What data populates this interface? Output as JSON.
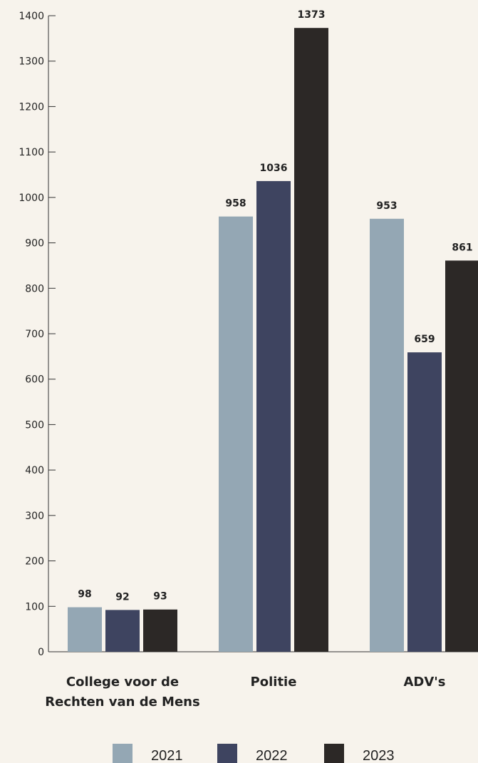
{
  "chart_data": {
    "type": "bar",
    "categories": [
      [
        "College voor de",
        "Rechten van de Mens"
      ],
      [
        "Politie"
      ],
      [
        "ADV's"
      ]
    ],
    "category_names": [
      "College voor de Rechten van de Mens",
      "Politie",
      "ADV's"
    ],
    "series": [
      {
        "name": "2021",
        "color": "#94a7b4",
        "values": [
          98,
          958,
          953
        ]
      },
      {
        "name": "2022",
        "color": "#3e4460",
        "values": [
          92,
          1036,
          659
        ]
      },
      {
        "name": "2023",
        "color": "#2c2826",
        "values": [
          93,
          1373,
          861
        ]
      }
    ],
    "title": "",
    "xlabel": "",
    "ylabel": "",
    "ylim": [
      0,
      1400
    ],
    "yticks": [
      0,
      100,
      200,
      300,
      400,
      500,
      600,
      700,
      800,
      900,
      1000,
      1100,
      1200,
      1300,
      1400
    ],
    "grid": false,
    "legend": "bottom-center",
    "background": "#f7f3ec"
  }
}
